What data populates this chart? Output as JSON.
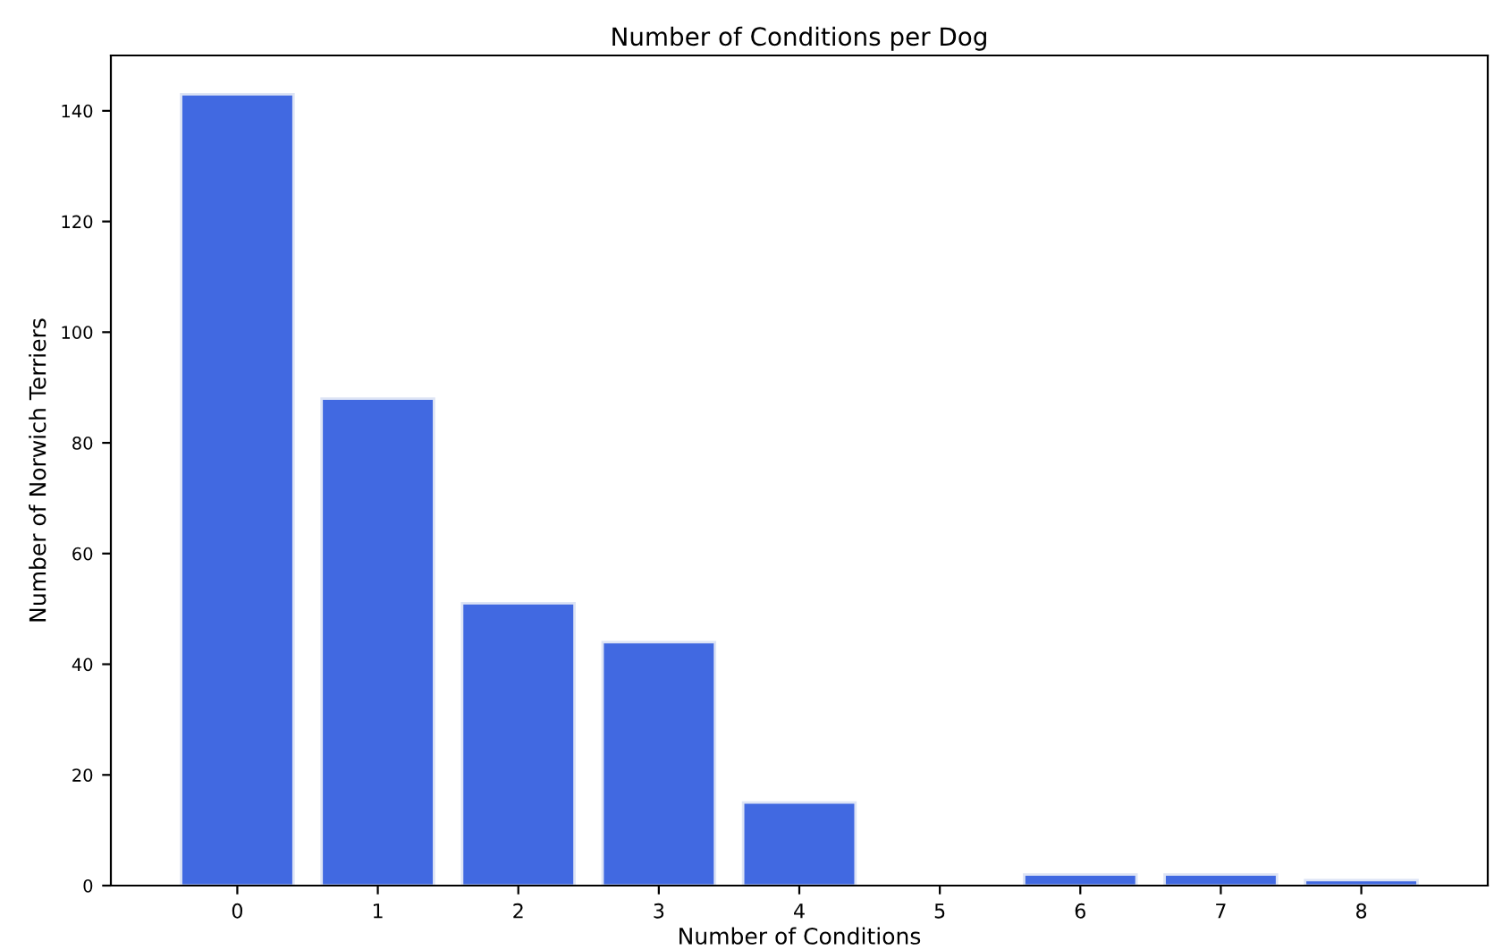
{
  "chart_data": {
    "type": "bar",
    "title": "Number of Conditions per Dog",
    "xlabel": "Number of Conditions",
    "ylabel": "Number of Norwich Terriers",
    "categories": [
      "0",
      "1",
      "2",
      "3",
      "4",
      "5",
      "6",
      "7",
      "8"
    ],
    "values": [
      143,
      88,
      51,
      44,
      15,
      0,
      2,
      2,
      1
    ],
    "color": "#4169e1",
    "ylim": [
      0,
      150
    ],
    "yticks": [
      0,
      20,
      40,
      60,
      80,
      100,
      120,
      140
    ],
    "grid": false
  }
}
